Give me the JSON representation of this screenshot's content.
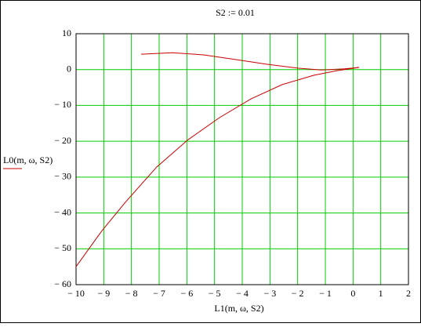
{
  "chart_data": {
    "type": "line",
    "title": "S2 := 0.01",
    "xlabel": "L1(m, ω, S2)",
    "ylabel": "L0(m, ω, S2)",
    "xlim": [
      -10,
      2
    ],
    "ylim": [
      -60,
      10
    ],
    "xticks": [
      {
        "value": -10,
        "label": "− 10"
      },
      {
        "value": -9,
        "label": "− 9"
      },
      {
        "value": -8,
        "label": "− 8"
      },
      {
        "value": -7,
        "label": "− 7"
      },
      {
        "value": -6,
        "label": "− 6"
      },
      {
        "value": -5,
        "label": "− 5"
      },
      {
        "value": -4,
        "label": "− 4"
      },
      {
        "value": -3,
        "label": "− 3"
      },
      {
        "value": -2,
        "label": "− 2"
      },
      {
        "value": -1,
        "label": "− 1"
      },
      0,
      1,
      2
    ],
    "yticks": [
      10,
      0,
      {
        "value": -10,
        "label": "− 10"
      },
      {
        "value": -20,
        "label": "− 20"
      },
      {
        "value": -30,
        "label": "− 30"
      },
      {
        "value": -40,
        "label": "− 40"
      },
      {
        "value": -50,
        "label": "− 50"
      },
      {
        "value": -60,
        "label": "− 60"
      }
    ],
    "grid": true,
    "grid_color": "#00cc00",
    "series": [
      {
        "color": "#cc0000",
        "x": [
          -10,
          -9.07,
          -8.22,
          -7.09,
          -5.96,
          -4.82,
          -3.69,
          -2.56,
          -1.42,
          -0.58,
          0.22,
          -0.3,
          -1.14,
          -2.0,
          -3.12,
          -4.25,
          -5.39,
          -6.52,
          -7.65
        ],
        "y": [
          -55,
          -45,
          -37,
          -27.2,
          -19.6,
          -13.4,
          -8.2,
          -4.2,
          -1.6,
          -0.3,
          0.6,
          0.2,
          -0.1,
          0.4,
          1.5,
          2.8,
          4.1,
          4.7,
          4.3
        ]
      }
    ]
  }
}
